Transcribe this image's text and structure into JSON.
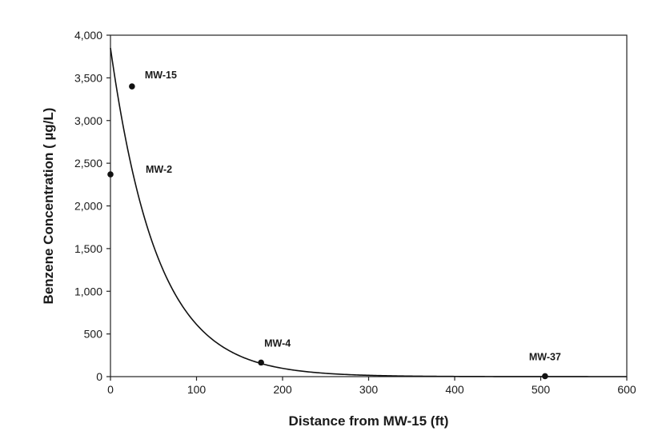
{
  "chart_data": {
    "type": "scatter",
    "xlabel": "Distance from MW-15 (ft)",
    "ylabel": "Benzene Concentration ( µg/L)",
    "xlim": [
      0,
      600
    ],
    "ylim": [
      0,
      4000
    ],
    "x_ticks": [
      0,
      100,
      200,
      300,
      400,
      500,
      600
    ],
    "x_tick_labels": [
      "0",
      "100",
      "200",
      "300",
      "400",
      "500",
      "600"
    ],
    "y_ticks": [
      0,
      500,
      1000,
      1500,
      2000,
      2500,
      3000,
      3500,
      4000
    ],
    "y_tick_labels": [
      "0",
      "500",
      "1,000",
      "1,500",
      "2,000",
      "2,500",
      "3,000",
      "3,500",
      "4,000"
    ],
    "grid": false,
    "series": [
      {
        "points": [
          {
            "label": "MW-15",
            "x": 25,
            "y": 3400
          },
          {
            "label": "MW-2",
            "x": 0,
            "y": 2370
          },
          {
            "label": "MW-4",
            "x": 175,
            "y": 165
          },
          {
            "label": "MW-37",
            "x": 505,
            "y": 5
          }
        ]
      }
    ],
    "fit_curve": {
      "type": "exponential",
      "a": 3850,
      "b": -0.0184,
      "x_range": [
        0,
        600
      ]
    },
    "colors": {
      "points": "#111111",
      "curve": "#111111",
      "axes": "#222222"
    }
  }
}
